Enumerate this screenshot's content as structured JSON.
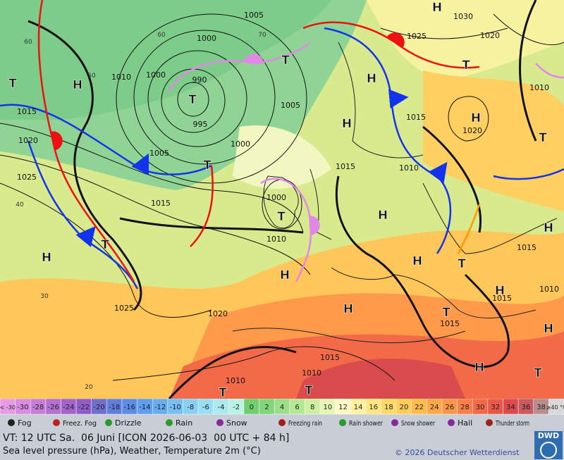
{
  "map": {
    "isobar_labels": [
      "1005",
      "1000",
      "1010",
      "1000",
      "990",
      "995",
      "1005",
      "1000",
      "1005",
      "1015",
      "1020",
      "1025",
      "1015",
      "1000",
      "1010",
      "1025",
      "1020",
      "1015",
      "1010",
      "1010",
      "1015",
      "1010",
      "1015",
      "1020",
      "1025",
      "1020",
      "1030",
      "1015",
      "1015",
      "1015",
      "1010",
      "1010"
    ],
    "latitude_labels": [
      "60",
      "50",
      "40",
      "30",
      "20",
      "60",
      "70"
    ],
    "pressure_centers": [
      "T",
      "H",
      "T",
      "T",
      "T",
      "H",
      "H",
      "H",
      "H",
      "T",
      "H",
      "T",
      "T",
      "H",
      "H",
      "T",
      "H",
      "H",
      "T",
      "H",
      "T",
      "H",
      "H",
      "H",
      "T",
      "T",
      "T"
    ]
  },
  "scale": [
    {
      "label": "< -30",
      "color": "#e59be6"
    },
    {
      "label": "-30",
      "color": "#d98ce0"
    },
    {
      "label": "-28",
      "color": "#c77ed9"
    },
    {
      "label": "-26",
      "color": "#b471d2"
    },
    {
      "label": "-24",
      "color": "#a263cb"
    },
    {
      "label": "-22",
      "color": "#905dc8"
    },
    {
      "label": "-20",
      "color": "#6f6fd0"
    },
    {
      "label": "-18",
      "color": "#5f7fe0"
    },
    {
      "label": "-16",
      "color": "#5b8de8"
    },
    {
      "label": "-14",
      "color": "#5e9def"
    },
    {
      "label": "-12",
      "color": "#68adf2"
    },
    {
      "label": "-10",
      "color": "#76bff4"
    },
    {
      "label": "-8",
      "color": "#87d0f4"
    },
    {
      "label": "-6",
      "color": "#98dff3"
    },
    {
      "label": "-4",
      "color": "#a9ebef"
    },
    {
      "label": "-2",
      "color": "#b9f3e2"
    },
    {
      "label": "0",
      "color": "#6fcf6f"
    },
    {
      "label": "2",
      "color": "#80d77a"
    },
    {
      "label": "4",
      "color": "#9ddf88"
    },
    {
      "label": "6",
      "color": "#b5e894"
    },
    {
      "label": "8",
      "color": "#cdf0a0"
    },
    {
      "label": "10",
      "color": "#e6f6b6"
    },
    {
      "label": "12",
      "color": "#fff9c8"
    },
    {
      "label": "14",
      "color": "#fff2a0"
    },
    {
      "label": "16",
      "color": "#ffe680"
    },
    {
      "label": "18",
      "color": "#ffda68"
    },
    {
      "label": "20",
      "color": "#ffcd58"
    },
    {
      "label": "22",
      "color": "#ffbc4c"
    },
    {
      "label": "24",
      "color": "#ffa84a"
    },
    {
      "label": "26",
      "color": "#ff9548"
    },
    {
      "label": "28",
      "color": "#fb8047"
    },
    {
      "label": "30",
      "color": "#f46a47"
    },
    {
      "label": "32",
      "color": "#e95749"
    },
    {
      "label": "34",
      "color": "#dc4a4d"
    },
    {
      "label": "36",
      "color": "#c95a5f"
    },
    {
      "label": "38",
      "color": "#b98d8d"
    },
    {
      "label": "≥40 °C",
      "color": "#d8d8d8"
    }
  ],
  "weather_legend": [
    "Fog",
    "Freez. Fog",
    "Drizzle",
    "Rain",
    "Snow",
    "Freezing rain",
    "Rain shower",
    "Snow shower",
    "Hail",
    "Thunder storm"
  ],
  "footer": {
    "valid_time": "VT: 12 UTC Sa.  06 Juni [ICON 2026-06-03  00 UTC + 84 h]",
    "description": "Sea level pressure (hPa), Weather, Temperature 2m (°C)",
    "copyright": "© 2026 Deutscher Wetterdienst",
    "logo": "DWD"
  }
}
